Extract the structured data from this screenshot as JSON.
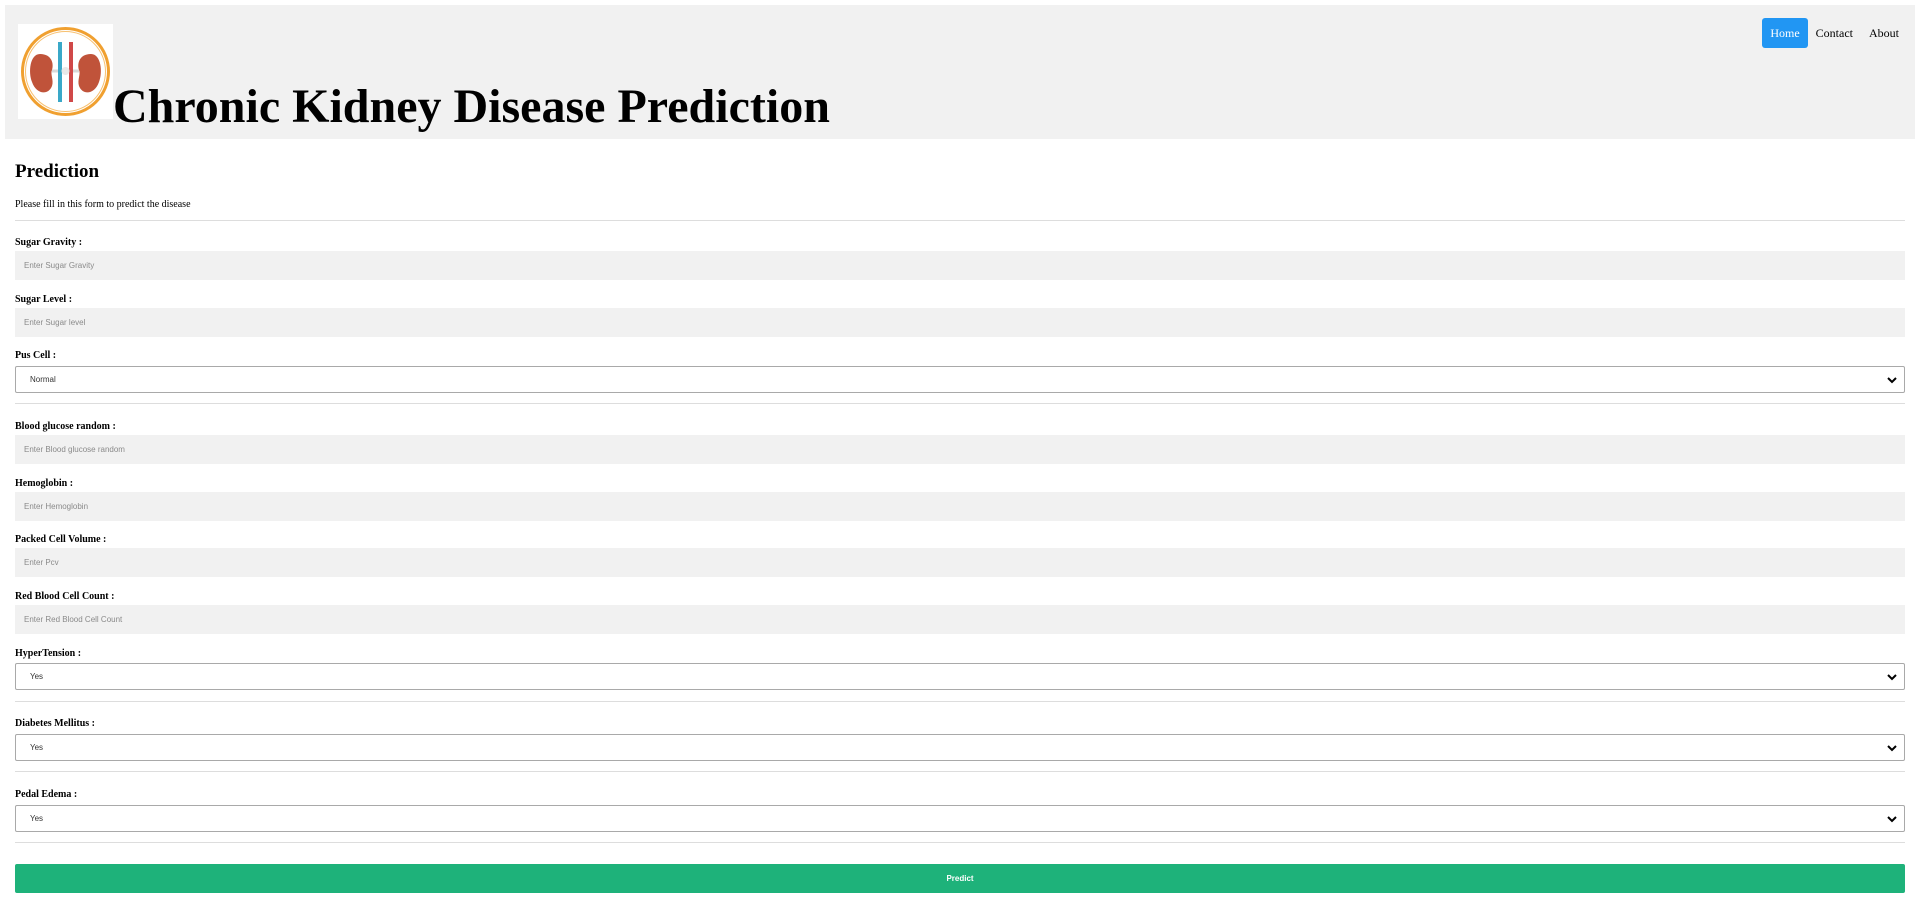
{
  "header": {
    "logo_alt": "kidney-logo",
    "title": "Chronic Kidney Disease Prediction",
    "nav": [
      {
        "label": "Home",
        "active": true
      },
      {
        "label": "Contact",
        "active": false
      },
      {
        "label": "About",
        "active": false
      }
    ]
  },
  "form": {
    "heading": "Prediction",
    "intro": "Please fill in this form to predict the disease",
    "fields": {
      "sugar_gravity": {
        "label": "Sugar Gravity :",
        "placeholder": "Enter Sugar Gravity",
        "value": ""
      },
      "sugar_level": {
        "label": "Sugar Level :",
        "placeholder": "Enter Sugar level",
        "value": ""
      },
      "pus_cell": {
        "label": "Pus Cell :",
        "selected": "Normal"
      },
      "blood_glucose_random": {
        "label": "Blood glucose random :",
        "placeholder": "Enter Blood glucose random",
        "value": ""
      },
      "hemoglobin": {
        "label": "Hemoglobin :",
        "placeholder": "Enter Hemoglobin",
        "value": ""
      },
      "packed_cell_volume": {
        "label": "Packed Cell Volume :",
        "placeholder": "Enter Pcv",
        "value": ""
      },
      "red_blood_cell_count": {
        "label": "Red Blood Cell Count :",
        "placeholder": "Enter Red Blood Cell Count",
        "value": ""
      },
      "hypertension": {
        "label": "HyperTension :",
        "selected": "Yes"
      },
      "diabetes_mellitus": {
        "label": "Diabetes Mellitus :",
        "selected": "Yes"
      },
      "pedal_edema": {
        "label": "Pedal Edema :",
        "selected": "Yes"
      }
    },
    "submit_label": "Predict"
  },
  "colors": {
    "header_bg": "#f1f1f1",
    "nav_active": "#2196f3",
    "input_bg": "#f1f1f1",
    "button_bg": "#1eb27a"
  }
}
